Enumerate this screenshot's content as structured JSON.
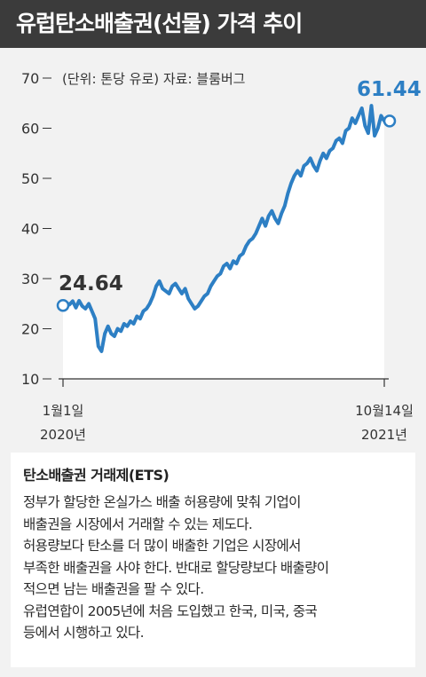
{
  "title": "유럽탄소배출권(선물) 가격 추이",
  "chart_data": {
    "type": "line",
    "unit_note": "(단위: 톤당 유로) 자료: 블룸버그",
    "yticks": [
      10,
      20,
      30,
      40,
      50,
      60,
      70
    ],
    "ylim": [
      10,
      70
    ],
    "x_start_label": [
      "1월1일",
      "2020년"
    ],
    "x_end_label": [
      "10월14일",
      "2021년"
    ],
    "start_value": "24.64",
    "end_value": "61.44",
    "line_color": "#2d7fc4",
    "series": [
      {
        "x": 0,
        "y": 24.64
      },
      {
        "x": 0.01,
        "y": 25.2
      },
      {
        "x": 0.02,
        "y": 24.8
      },
      {
        "x": 0.03,
        "y": 25.5
      },
      {
        "x": 0.04,
        "y": 24.2
      },
      {
        "x": 0.05,
        "y": 25.6
      },
      {
        "x": 0.06,
        "y": 24.5
      },
      {
        "x": 0.07,
        "y": 24.0
      },
      {
        "x": 0.08,
        "y": 25.0
      },
      {
        "x": 0.09,
        "y": 23.5
      },
      {
        "x": 0.1,
        "y": 22.0
      },
      {
        "x": 0.11,
        "y": 16.5
      },
      {
        "x": 0.12,
        "y": 15.5
      },
      {
        "x": 0.13,
        "y": 19.0
      },
      {
        "x": 0.14,
        "y": 20.5
      },
      {
        "x": 0.15,
        "y": 19.0
      },
      {
        "x": 0.16,
        "y": 18.5
      },
      {
        "x": 0.17,
        "y": 20.0
      },
      {
        "x": 0.18,
        "y": 19.5
      },
      {
        "x": 0.19,
        "y": 21.0
      },
      {
        "x": 0.2,
        "y": 20.5
      },
      {
        "x": 0.21,
        "y": 21.5
      },
      {
        "x": 0.22,
        "y": 21.0
      },
      {
        "x": 0.23,
        "y": 22.5
      },
      {
        "x": 0.24,
        "y": 22.0
      },
      {
        "x": 0.25,
        "y": 23.5
      },
      {
        "x": 0.26,
        "y": 24.0
      },
      {
        "x": 0.27,
        "y": 25.0
      },
      {
        "x": 0.28,
        "y": 26.5
      },
      {
        "x": 0.29,
        "y": 28.5
      },
      {
        "x": 0.3,
        "y": 29.5
      },
      {
        "x": 0.31,
        "y": 28.0
      },
      {
        "x": 0.32,
        "y": 27.5
      },
      {
        "x": 0.33,
        "y": 27.0
      },
      {
        "x": 0.34,
        "y": 28.5
      },
      {
        "x": 0.35,
        "y": 29.0
      },
      {
        "x": 0.36,
        "y": 28.0
      },
      {
        "x": 0.37,
        "y": 27.0
      },
      {
        "x": 0.38,
        "y": 28.0
      },
      {
        "x": 0.39,
        "y": 26.0
      },
      {
        "x": 0.4,
        "y": 25.0
      },
      {
        "x": 0.41,
        "y": 24.0
      },
      {
        "x": 0.42,
        "y": 24.5
      },
      {
        "x": 0.43,
        "y": 25.5
      },
      {
        "x": 0.44,
        "y": 26.5
      },
      {
        "x": 0.45,
        "y": 27.0
      },
      {
        "x": 0.46,
        "y": 28.5
      },
      {
        "x": 0.47,
        "y": 29.5
      },
      {
        "x": 0.48,
        "y": 30.5
      },
      {
        "x": 0.49,
        "y": 31.0
      },
      {
        "x": 0.5,
        "y": 32.5
      },
      {
        "x": 0.51,
        "y": 33.0
      },
      {
        "x": 0.52,
        "y": 32.0
      },
      {
        "x": 0.53,
        "y": 33.5
      },
      {
        "x": 0.54,
        "y": 33.0
      },
      {
        "x": 0.55,
        "y": 34.5
      },
      {
        "x": 0.56,
        "y": 35.0
      },
      {
        "x": 0.57,
        "y": 36.5
      },
      {
        "x": 0.58,
        "y": 37.5
      },
      {
        "x": 0.59,
        "y": 38.0
      },
      {
        "x": 0.6,
        "y": 39.0
      },
      {
        "x": 0.61,
        "y": 40.5
      },
      {
        "x": 0.62,
        "y": 42.0
      },
      {
        "x": 0.63,
        "y": 40.5
      },
      {
        "x": 0.64,
        "y": 42.5
      },
      {
        "x": 0.65,
        "y": 43.5
      },
      {
        "x": 0.66,
        "y": 42.0
      },
      {
        "x": 0.67,
        "y": 41.0
      },
      {
        "x": 0.68,
        "y": 43.0
      },
      {
        "x": 0.69,
        "y": 44.5
      },
      {
        "x": 0.7,
        "y": 47.0
      },
      {
        "x": 0.71,
        "y": 49.0
      },
      {
        "x": 0.72,
        "y": 50.5
      },
      {
        "x": 0.73,
        "y": 51.5
      },
      {
        "x": 0.74,
        "y": 50.5
      },
      {
        "x": 0.75,
        "y": 52.5
      },
      {
        "x": 0.76,
        "y": 53.0
      },
      {
        "x": 0.77,
        "y": 54.0
      },
      {
        "x": 0.78,
        "y": 52.5
      },
      {
        "x": 0.79,
        "y": 51.5
      },
      {
        "x": 0.8,
        "y": 53.5
      },
      {
        "x": 0.81,
        "y": 55.0
      },
      {
        "x": 0.82,
        "y": 54.0
      },
      {
        "x": 0.83,
        "y": 55.5
      },
      {
        "x": 0.84,
        "y": 56.0
      },
      {
        "x": 0.85,
        "y": 57.5
      },
      {
        "x": 0.86,
        "y": 58.0
      },
      {
        "x": 0.87,
        "y": 57.0
      },
      {
        "x": 0.88,
        "y": 59.5
      },
      {
        "x": 0.89,
        "y": 60.0
      },
      {
        "x": 0.9,
        "y": 62.0
      },
      {
        "x": 0.91,
        "y": 61.0
      },
      {
        "x": 0.92,
        "y": 62.5
      },
      {
        "x": 0.93,
        "y": 64.0
      },
      {
        "x": 0.94,
        "y": 60.5
      },
      {
        "x": 0.95,
        "y": 59.0
      },
      {
        "x": 0.96,
        "y": 64.5
      },
      {
        "x": 0.97,
        "y": 58.5
      },
      {
        "x": 0.98,
        "y": 60.0
      },
      {
        "x": 0.99,
        "y": 62.5
      },
      {
        "x": 1,
        "y": 61.44
      }
    ]
  },
  "explain": {
    "title": "탄소배출권 거래제(ETS)",
    "lines": [
      "정부가 할당한 온실가스 배출 허용량에 맞춰 기업이",
      "배출권을 시장에서 거래할 수 있는 제도다.",
      "허용량보다 탄소를 더 많이 배출한 기업은 시장에서",
      "부족한 배출권을 사야 한다. 반대로 할당량보다 배출량이",
      "적으면 남는 배출권을 팔 수 있다.",
      "유럽연합이 2005년에 처음 도입했고 한국, 미국, 중국",
      "등에서 시행하고 있다."
    ]
  }
}
